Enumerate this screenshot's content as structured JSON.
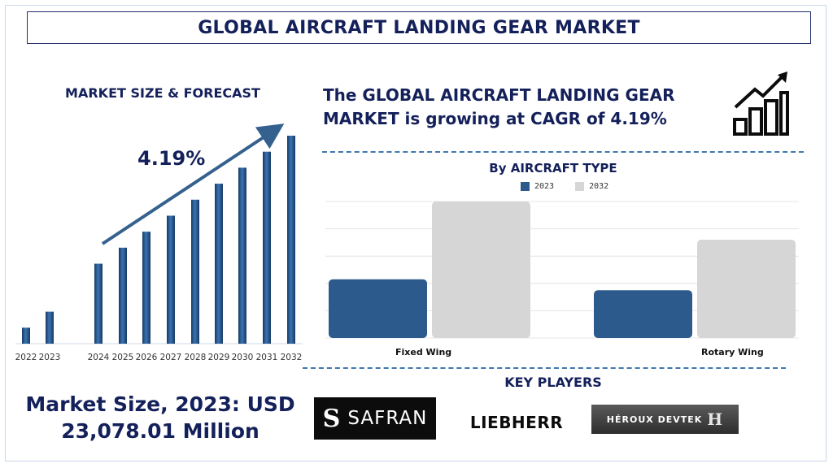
{
  "page_title": "GLOBAL AIRCRAFT LANDING GEAR MARKET",
  "left_heading": "MARKET SIZE & FORECAST",
  "cagr_label": "4.19%",
  "headline": "The GLOBAL AIRCRAFT LANDING GEAR MARKET is growing at CAGR of 4.19%",
  "market_size": {
    "line1": "Market Size, 2023: USD",
    "line2": "23,078.01 Million"
  },
  "key_players_heading": "KEY PLAYERS",
  "key_players": [
    "SAFRAN",
    "LIEBHERR",
    "HÉROUX DEVTEK"
  ],
  "colors": {
    "navy": "#14205a",
    "bar_blue": "#2c5a8c",
    "bar_grey": "#d6d6d6",
    "dash_blue": "#3f78b0"
  },
  "chart_data": [
    {
      "type": "bar",
      "title": "MARKET SIZE & FORECAST",
      "categories": [
        "2022",
        "2023",
        "2024",
        "2025",
        "2026",
        "2027",
        "2028",
        "2029",
        "2030",
        "2031",
        "2032"
      ],
      "values": [
        1.0,
        2.0,
        5.0,
        6.0,
        7.0,
        8.0,
        9.0,
        10.0,
        11.0,
        12.0,
        13.0
      ],
      "annotation": "4.19%",
      "xlabel": "",
      "ylabel": "",
      "grid": false
    },
    {
      "type": "bar",
      "title": "By AIRCRAFT TYPE",
      "categories": [
        "Fixed Wing",
        "Rotary Wing"
      ],
      "series": [
        {
          "name": "2023",
          "values": [
            43,
            35
          ]
        },
        {
          "name": "2032",
          "values": [
            100,
            72
          ]
        }
      ],
      "ylim": [
        0,
        100
      ],
      "legend": "top-center",
      "grid": true
    }
  ]
}
